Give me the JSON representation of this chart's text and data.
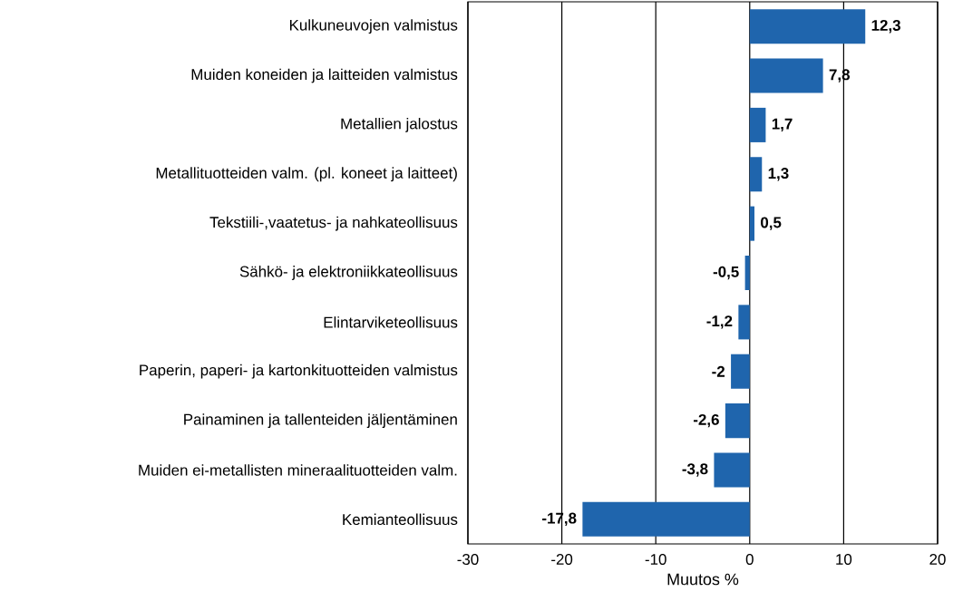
{
  "chart_data": {
    "type": "bar",
    "orientation": "horizontal",
    "xlabel": "Muutos  %",
    "categories": [
      "Kulkuneuvojen valmistus",
      "Muiden koneiden ja laitteiden valmistus",
      "Metallien jalostus",
      "Metallituotteiden valm. (pl. koneet ja laitteet)",
      "Tekstiili-,vaatetus- ja nahkateollisuus",
      "Sähkö- ja elektroniikkateollisuus",
      "Elintarviketeollisuus",
      "Paperin, paperi- ja kartonkituotteiden valmistus",
      "Painaminen ja tallenteiden jäljentäminen",
      "Muiden ei-metallisten mineraalituotteiden valm.",
      "Kemianteollisuus"
    ],
    "values": [
      12.3,
      7.8,
      1.7,
      1.3,
      0.5,
      -0.5,
      -1.2,
      -2,
      -2.6,
      -3.8,
      -17.8
    ],
    "value_labels": [
      "12,3",
      "7,8",
      "1,7",
      "1,3",
      "0,5",
      "-0,5",
      "-1,2",
      "-2",
      "-2,6",
      "-3,8",
      "-17,8"
    ],
    "color": "#1f65ad",
    "xlim": [
      -30,
      20
    ],
    "xticks": [
      -30,
      -20,
      -10,
      0,
      10,
      20
    ],
    "grid": "x"
  }
}
